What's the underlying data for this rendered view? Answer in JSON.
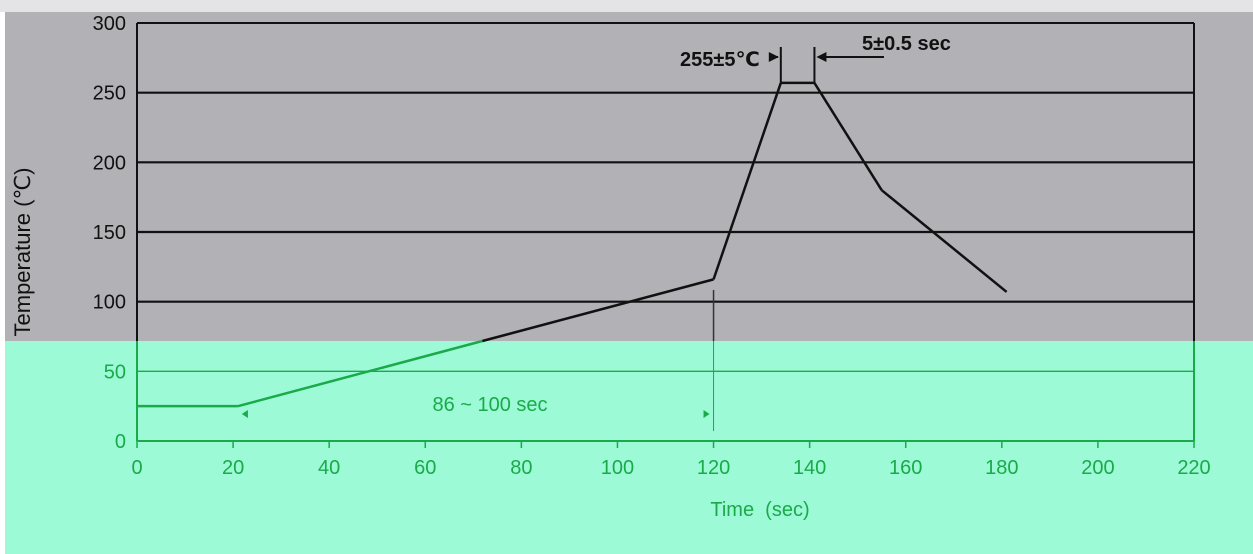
{
  "chart_data": {
    "type": "line",
    "xlabel": "Time  (sec)",
    "ylabel": "Temperature (℃)",
    "xlim": [
      0,
      220
    ],
    "ylim": [
      0,
      300
    ],
    "x_ticks": [
      "0",
      "20",
      "40",
      "60",
      "80",
      "100",
      "120",
      "140",
      "160",
      "180",
      "200",
      "220"
    ],
    "y_ticks": [
      "0",
      "50",
      "100",
      "150",
      "200",
      "250",
      "300"
    ],
    "grid": "horizontal",
    "series": [
      {
        "x": [
          0,
          21,
          120,
          134,
          141,
          155,
          181
        ],
        "y": [
          25,
          25,
          116,
          257,
          257,
          180,
          107
        ]
      }
    ],
    "annotations": {
      "peak_temp": "255±5℃",
      "peak_time": "5±0.5 sec",
      "preheat_duration": "86 ~ 100 sec"
    },
    "colors": {
      "upper_band": "#b2b1b6",
      "lower_band": "#9dfad6",
      "green_line": "#1aaa4a",
      "dark_line": "#111111"
    }
  }
}
